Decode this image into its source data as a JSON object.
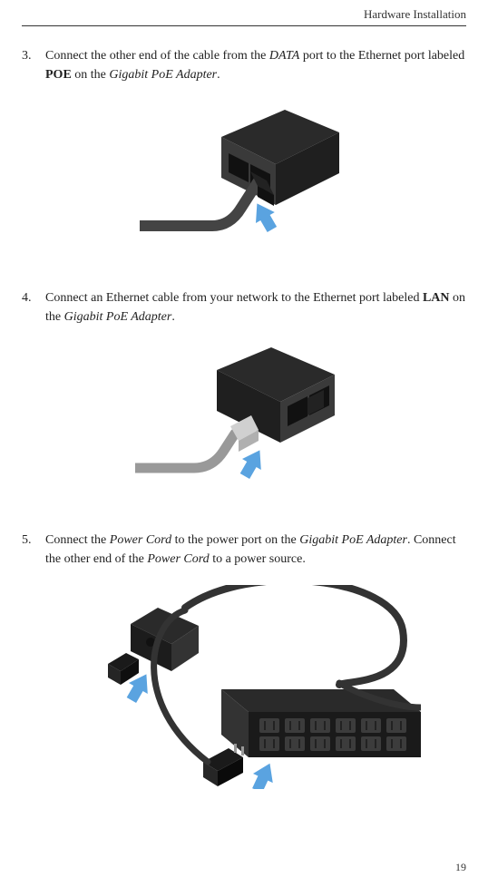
{
  "header": {
    "title": "Hardware Installation"
  },
  "page": {
    "number": "19"
  },
  "steps": [
    {
      "num": "3.",
      "segments": [
        {
          "text": "Connect the other end of the cable from the ",
          "style": ""
        },
        {
          "text": "DATA",
          "style": "italic"
        },
        {
          "text": " port to the Ethernet port labeled ",
          "style": ""
        },
        {
          "text": "POE",
          "style": "bold"
        },
        {
          "text": " on the ",
          "style": ""
        },
        {
          "text": "Gigabit PoE Adapter",
          "style": "italic"
        },
        {
          "text": ".",
          "style": ""
        }
      ]
    },
    {
      "num": "4.",
      "segments": [
        {
          "text": "Connect an Ethernet cable from your network to the Ethernet port labeled ",
          "style": ""
        },
        {
          "text": "LAN",
          "style": "bold"
        },
        {
          "text": " on the ",
          "style": ""
        },
        {
          "text": "Gigabit PoE Adapter",
          "style": "italic"
        },
        {
          "text": ".",
          "style": ""
        }
      ]
    },
    {
      "num": "5.",
      "segments": [
        {
          "text": "Connect the ",
          "style": ""
        },
        {
          "text": "Power Cord",
          "style": "italic"
        },
        {
          "text": " to the power port on the ",
          "style": ""
        },
        {
          "text": "Gigabit PoE Adapter",
          "style": "italic"
        },
        {
          "text": ". Connect the other end of the ",
          "style": ""
        },
        {
          "text": "Power Cord",
          "style": "italic"
        },
        {
          "text": " to a power source.",
          "style": ""
        }
      ]
    }
  ],
  "illustrations": {
    "arrow_color": "#5aa3e0",
    "adapter_dark": "#2a2a2a",
    "adapter_mid": "#3a3a3a",
    "adapter_light": "#555",
    "cable_gray": "#888",
    "cable_dark": "#444",
    "connector": "#c0c0c0",
    "strip_dark": "#1a1a1a",
    "outlet": "#444"
  }
}
